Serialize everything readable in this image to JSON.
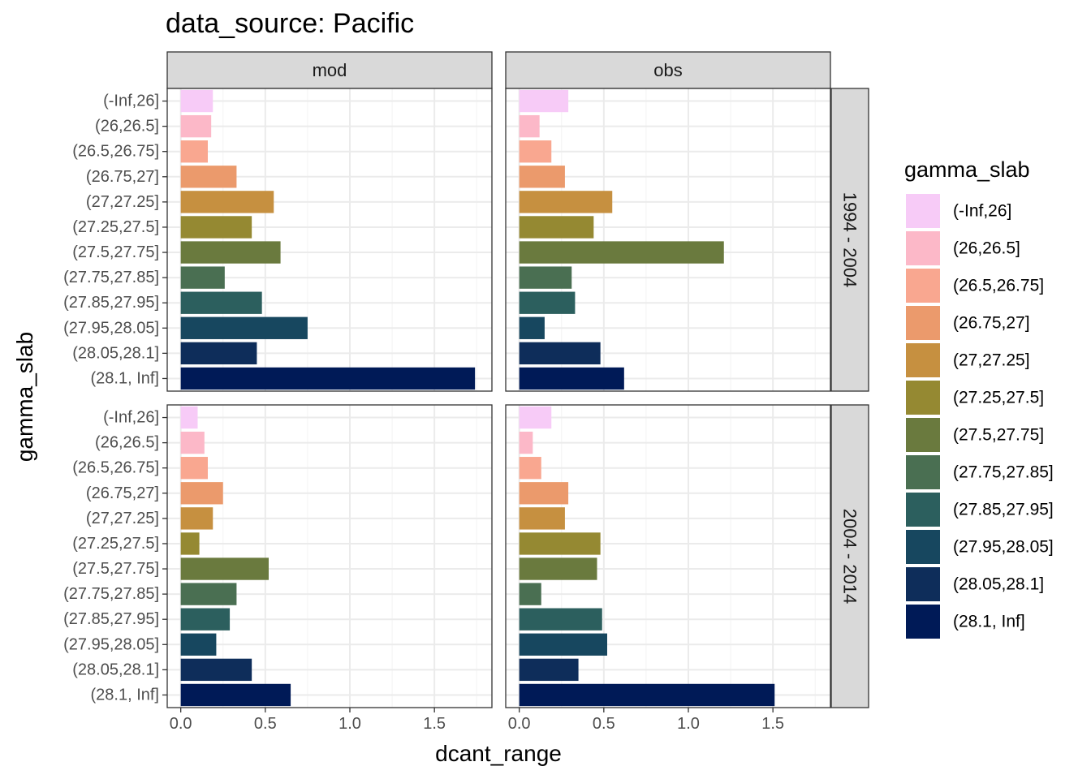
{
  "chart_data": {
    "type": "bar",
    "orientation": "horizontal",
    "facet_layout": "grid",
    "title": "data_source: Pacific",
    "xlabel": "dcant_range",
    "ylabel": "gamma_slab",
    "xlim": [
      -0.08,
      1.84
    ],
    "xticks": [
      0.0,
      0.5,
      1.0,
      1.5
    ],
    "xtick_labels": [
      "0.0",
      "0.5",
      "1.0",
      "1.5"
    ],
    "grid": true,
    "columns": [
      "mod",
      "obs"
    ],
    "rows": [
      "1994 - 2004",
      "2004 - 2014"
    ],
    "categories": [
      "(-Inf,26]",
      "(26,26.5]",
      "(26.5,26.75]",
      "(26.75,27]",
      "(27,27.25]",
      "(27.25,27.5]",
      "(27.5,27.75]",
      "(27.75,27.85]",
      "(27.85,27.95]",
      "(27.95,28.05]",
      "(28.05,28.1]",
      "(28.1, Inf]"
    ],
    "colors": [
      "#F7CBF7",
      "#FCB8C8",
      "#F9A790",
      "#EB9A6C",
      "#C69040",
      "#958932",
      "#6A7A3E",
      "#4A6F52",
      "#2C5F5E",
      "#17475F",
      "#0E2D5A",
      "#001A57"
    ],
    "panels": [
      {
        "column": "mod",
        "row": "1994 - 2004",
        "values": [
          0.19,
          0.18,
          0.16,
          0.33,
          0.55,
          0.42,
          0.59,
          0.26,
          0.48,
          0.75,
          0.45,
          1.74
        ]
      },
      {
        "column": "obs",
        "row": "1994 - 2004",
        "values": [
          0.29,
          0.12,
          0.19,
          0.27,
          0.55,
          0.44,
          1.21,
          0.31,
          0.33,
          0.15,
          0.48,
          0.62
        ]
      },
      {
        "column": "mod",
        "row": "2004 - 2014",
        "values": [
          0.1,
          0.14,
          0.16,
          0.25,
          0.19,
          0.11,
          0.52,
          0.33,
          0.29,
          0.21,
          0.42,
          0.65
        ]
      },
      {
        "column": "obs",
        "row": "2004 - 2014",
        "values": [
          0.19,
          0.08,
          0.13,
          0.29,
          0.27,
          0.48,
          0.46,
          0.13,
          0.49,
          0.52,
          0.35,
          1.51
        ]
      }
    ],
    "legend": {
      "title": "gamma_slab",
      "position": "right",
      "entries": [
        "(-Inf,26]",
        "(26,26.5]",
        "(26.5,26.75]",
        "(26.75,27]",
        "(27,27.25]",
        "(27.25,27.5]",
        "(27.5,27.75]",
        "(27.75,27.85]",
        "(27.85,27.95]",
        "(27.95,28.05]",
        "(28.05,28.1]",
        "(28.1, Inf]"
      ]
    }
  },
  "theme": {
    "panel_border": "#333333",
    "strip_fill": "#D9D9D9",
    "grid_major": "#EBEBEB",
    "grid_minor": "#F5F5F5",
    "tick_color": "#333333"
  }
}
